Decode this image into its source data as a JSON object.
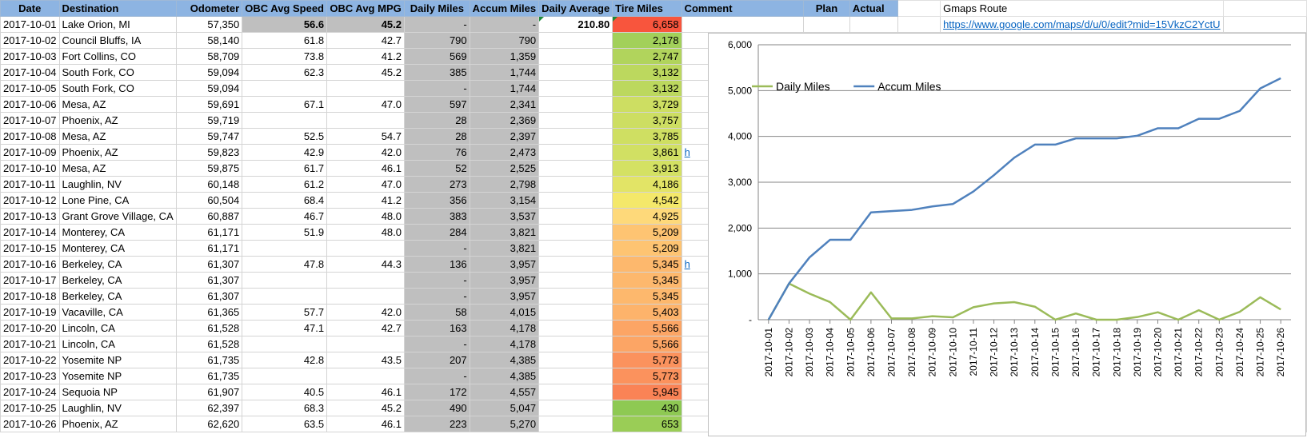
{
  "sheet": {
    "headers": [
      "Date",
      "Destination",
      "Odometer",
      "OBC Avg Speed",
      "OBC Avg MPG",
      "Daily Miles",
      "Accum Miles",
      "Daily Average",
      "Tire Miles",
      "Comment",
      "Plan",
      "Actual"
    ],
    "extra_header": "Gmaps Route",
    "gmaps_link": "https://www.google.com/maps/d/u/0/edit?mid=15VkzC2YctU",
    "comment_links": {
      "8": "h",
      "15": "h"
    },
    "rows": [
      {
        "date": "2017-10-01",
        "dest": "Lake Orion, MI",
        "odo": "57,350",
        "speed": "56.6",
        "mpg": "45.2",
        "daily": "-",
        "accum": "-",
        "avg": "210.80",
        "tire": "6,658",
        "tire_color": "#f8553d"
      },
      {
        "date": "2017-10-02",
        "dest": "Council Bluffs, IA",
        "odo": "58,140",
        "speed": "61.8",
        "mpg": "42.7",
        "daily": "790",
        "accum": "790",
        "avg": "",
        "tire": "2,178",
        "tire_color": "#a2d05a"
      },
      {
        "date": "2017-10-03",
        "dest": "Fort Collins, CO",
        "odo": "58,709",
        "speed": "73.8",
        "mpg": "41.2",
        "daily": "569",
        "accum": "1,359",
        "avg": "",
        "tire": "2,747",
        "tire_color": "#b1d45c"
      },
      {
        "date": "2017-10-04",
        "dest": "South Fork, CO",
        "odo": "59,094",
        "speed": "62.3",
        "mpg": "45.2",
        "daily": "385",
        "accum": "1,744",
        "avg": "",
        "tire": "3,132",
        "tire_color": "#bcd85e"
      },
      {
        "date": "2017-10-05",
        "dest": "South Fork, CO",
        "odo": "59,094",
        "speed": "",
        "mpg": "",
        "daily": "-",
        "accum": "1,744",
        "avg": "",
        "tire": "3,132",
        "tire_color": "#bcd85e"
      },
      {
        "date": "2017-10-06",
        "dest": "Mesa, AZ",
        "odo": "59,691",
        "speed": "67.1",
        "mpg": "47.0",
        "daily": "597",
        "accum": "2,341",
        "avg": "",
        "tire": "3,729",
        "tire_color": "#cdde62"
      },
      {
        "date": "2017-10-07",
        "dest": "Phoenix, AZ",
        "odo": "59,719",
        "speed": "",
        "mpg": "",
        "daily": "28",
        "accum": "2,369",
        "avg": "",
        "tire": "3,757",
        "tire_color": "#cdde62"
      },
      {
        "date": "2017-10-08",
        "dest": "Mesa, AZ",
        "odo": "59,747",
        "speed": "52.5",
        "mpg": "54.7",
        "daily": "28",
        "accum": "2,397",
        "avg": "",
        "tire": "3,785",
        "tire_color": "#cfdf62"
      },
      {
        "date": "2017-10-09",
        "dest": "Phoenix, AZ",
        "odo": "59,823",
        "speed": "42.9",
        "mpg": "42.0",
        "daily": "76",
        "accum": "2,473",
        "avg": "",
        "tire": "3,861",
        "tire_color": "#d1e063"
      },
      {
        "date": "2017-10-10",
        "dest": "Mesa, AZ",
        "odo": "59,875",
        "speed": "61.7",
        "mpg": "46.1",
        "daily": "52",
        "accum": "2,525",
        "avg": "",
        "tire": "3,913",
        "tire_color": "#d4e163"
      },
      {
        "date": "2017-10-11",
        "dest": "Laughlin, NV",
        "odo": "60,148",
        "speed": "61.2",
        "mpg": "47.0",
        "daily": "273",
        "accum": "2,798",
        "avg": "",
        "tire": "4,186",
        "tire_color": "#e2e466"
      },
      {
        "date": "2017-10-12",
        "dest": "Lone Pine, CA",
        "odo": "60,504",
        "speed": "68.4",
        "mpg": "41.2",
        "daily": "356",
        "accum": "3,154",
        "avg": "",
        "tire": "4,542",
        "tire_color": "#f4e86a"
      },
      {
        "date": "2017-10-13",
        "dest": "Grant Grove Village, CA",
        "odo": "60,887",
        "speed": "46.7",
        "mpg": "48.0",
        "daily": "383",
        "accum": "3,537",
        "avg": "",
        "tire": "4,925",
        "tire_color": "#fed97a"
      },
      {
        "date": "2017-10-14",
        "dest": "Monterey, CA",
        "odo": "61,171",
        "speed": "51.9",
        "mpg": "48.0",
        "daily": "284",
        "accum": "3,821",
        "avg": "",
        "tire": "5,209",
        "tire_color": "#fec472"
      },
      {
        "date": "2017-10-15",
        "dest": "Monterey, CA",
        "odo": "61,171",
        "speed": "",
        "mpg": "",
        "daily": "-",
        "accum": "3,821",
        "avg": "",
        "tire": "5,209",
        "tire_color": "#fec472"
      },
      {
        "date": "2017-10-16",
        "dest": "Berkeley, CA",
        "odo": "61,307",
        "speed": "47.8",
        "mpg": "44.3",
        "daily": "136",
        "accum": "3,957",
        "avg": "",
        "tire": "5,345",
        "tire_color": "#fdb86d"
      },
      {
        "date": "2017-10-17",
        "dest": "Berkeley, CA",
        "odo": "61,307",
        "speed": "",
        "mpg": "",
        "daily": "-",
        "accum": "3,957",
        "avg": "",
        "tire": "5,345",
        "tire_color": "#fdb86d"
      },
      {
        "date": "2017-10-18",
        "dest": "Berkeley, CA",
        "odo": "61,307",
        "speed": "",
        "mpg": "",
        "daily": "-",
        "accum": "3,957",
        "avg": "",
        "tire": "5,345",
        "tire_color": "#fdb86d"
      },
      {
        "date": "2017-10-19",
        "dest": "Vacaville, CA",
        "odo": "61,365",
        "speed": "57.7",
        "mpg": "42.0",
        "daily": "58",
        "accum": "4,015",
        "avg": "",
        "tire": "5,403",
        "tire_color": "#fdb36b"
      },
      {
        "date": "2017-10-20",
        "dest": "Lincoln, CA",
        "odo": "61,528",
        "speed": "47.1",
        "mpg": "42.7",
        "daily": "163",
        "accum": "4,178",
        "avg": "",
        "tire": "5,566",
        "tire_color": "#fca565"
      },
      {
        "date": "2017-10-21",
        "dest": "Lincoln, CA",
        "odo": "61,528",
        "speed": "",
        "mpg": "",
        "daily": "-",
        "accum": "4,178",
        "avg": "",
        "tire": "5,566",
        "tire_color": "#fca565"
      },
      {
        "date": "2017-10-22",
        "dest": "Yosemite NP",
        "odo": "61,735",
        "speed": "42.8",
        "mpg": "43.5",
        "daily": "207",
        "accum": "4,385",
        "avg": "",
        "tire": "5,773",
        "tire_color": "#fb925d"
      },
      {
        "date": "2017-10-23",
        "dest": "Yosemite NP",
        "odo": "61,735",
        "speed": "",
        "mpg": "",
        "daily": "-",
        "accum": "4,385",
        "avg": "",
        "tire": "5,773",
        "tire_color": "#fb925d"
      },
      {
        "date": "2017-10-24",
        "dest": "Sequoia NP",
        "odo": "61,907",
        "speed": "40.5",
        "mpg": "46.1",
        "daily": "172",
        "accum": "4,557",
        "avg": "",
        "tire": "5,945",
        "tire_color": "#fa8356"
      },
      {
        "date": "2017-10-25",
        "dest": "Laughlin, NV",
        "odo": "62,397",
        "speed": "68.3",
        "mpg": "45.2",
        "daily": "490",
        "accum": "5,047",
        "avg": "",
        "tire": "430",
        "tire_color": "#8ec953"
      },
      {
        "date": "2017-10-26",
        "dest": "Phoenix, AZ",
        "odo": "62,620",
        "speed": "63.5",
        "mpg": "46.1",
        "daily": "223",
        "accum": "5,270",
        "avg": "",
        "tire": "653",
        "tire_color": "#9acd56"
      }
    ]
  },
  "chart_data": {
    "type": "line",
    "x": [
      "2017-10-01",
      "2017-10-02",
      "2017-10-03",
      "2017-10-04",
      "2017-10-05",
      "2017-10-06",
      "2017-10-07",
      "2017-10-08",
      "2017-10-09",
      "2017-10-10",
      "2017-10-11",
      "2017-10-12",
      "2017-10-13",
      "2017-10-14",
      "2017-10-15",
      "2017-10-16",
      "2017-10-17",
      "2017-10-18",
      "2017-10-19",
      "2017-10-20",
      "2017-10-21",
      "2017-10-22",
      "2017-10-23",
      "2017-10-24",
      "2017-10-25",
      "2017-10-26"
    ],
    "series": [
      {
        "name": "Daily Miles",
        "color": "#9bbb59",
        "values": [
          0,
          790,
          569,
          385,
          0,
          597,
          28,
          28,
          76,
          52,
          273,
          356,
          383,
          284,
          0,
          136,
          0,
          0,
          58,
          163,
          0,
          207,
          0,
          172,
          490,
          223
        ]
      },
      {
        "name": "Accum Miles",
        "color": "#4f81bd",
        "values": [
          0,
          790,
          1359,
          1744,
          1744,
          2341,
          2369,
          2397,
          2473,
          2525,
          2798,
          3154,
          3537,
          3821,
          3821,
          3957,
          3957,
          3957,
          4015,
          4178,
          4178,
          4385,
          4385,
          4557,
          5047,
          5270
        ]
      }
    ],
    "yticks": [
      "-",
      "1,000",
      "2,000",
      "3,000",
      "4,000",
      "5,000",
      "6,000"
    ],
    "ylim": [
      0,
      6000
    ],
    "grid": true,
    "legend": "top-left"
  }
}
